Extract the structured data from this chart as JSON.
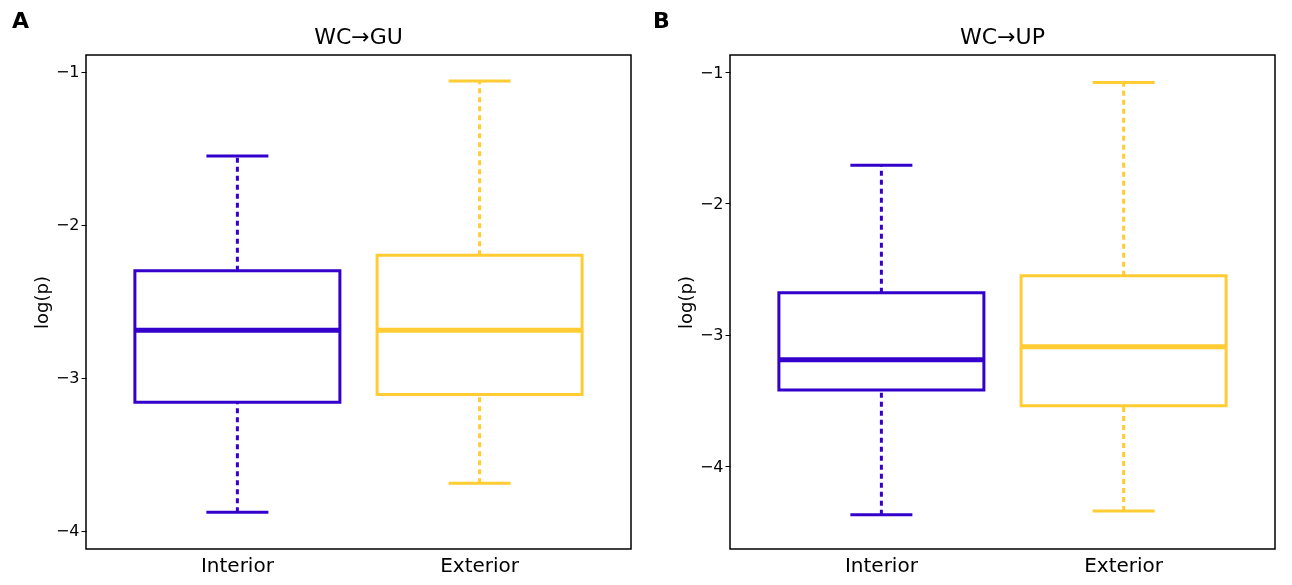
{
  "chart_data": [
    {
      "type": "box",
      "title": "WC→GU",
      "ylabel": "log(p)",
      "annotations": [
        "A"
      ],
      "categories": [
        "Interior",
        "Exterior"
      ],
      "colors": [
        "#3300cc",
        "#ffcc33"
      ],
      "line_style": "dashed",
      "grid": false,
      "ylim": [
        -4.12,
        -0.89
      ],
      "yticks": [
        -4,
        -3,
        -2,
        -1
      ],
      "boxes": [
        {
          "low": -3.88,
          "q1": -3.16,
          "median": -2.69,
          "q3": -2.3,
          "high": -1.55
        },
        {
          "low": -3.69,
          "q1": -3.11,
          "median": -2.69,
          "q3": -2.2,
          "high": -1.06
        }
      ]
    },
    {
      "type": "box",
      "title": "WC→UP",
      "ylabel": "log(p)",
      "annotations": [
        "B"
      ],
      "categories": [
        "Interior",
        "Exterior"
      ],
      "colors": [
        "#3300cc",
        "#ffcc33"
      ],
      "line_style": "dashed",
      "grid": false,
      "ylim": [
        -4.63,
        -0.87
      ],
      "yticks": [
        -4,
        -3,
        -2,
        -1
      ],
      "boxes": [
        {
          "low": -4.37,
          "q1": -3.42,
          "median": -3.19,
          "q3": -2.68,
          "high": -1.71
        },
        {
          "low": -4.34,
          "q1": -3.54,
          "median": -3.09,
          "q3": -2.55,
          "high": -1.08
        }
      ]
    }
  ]
}
